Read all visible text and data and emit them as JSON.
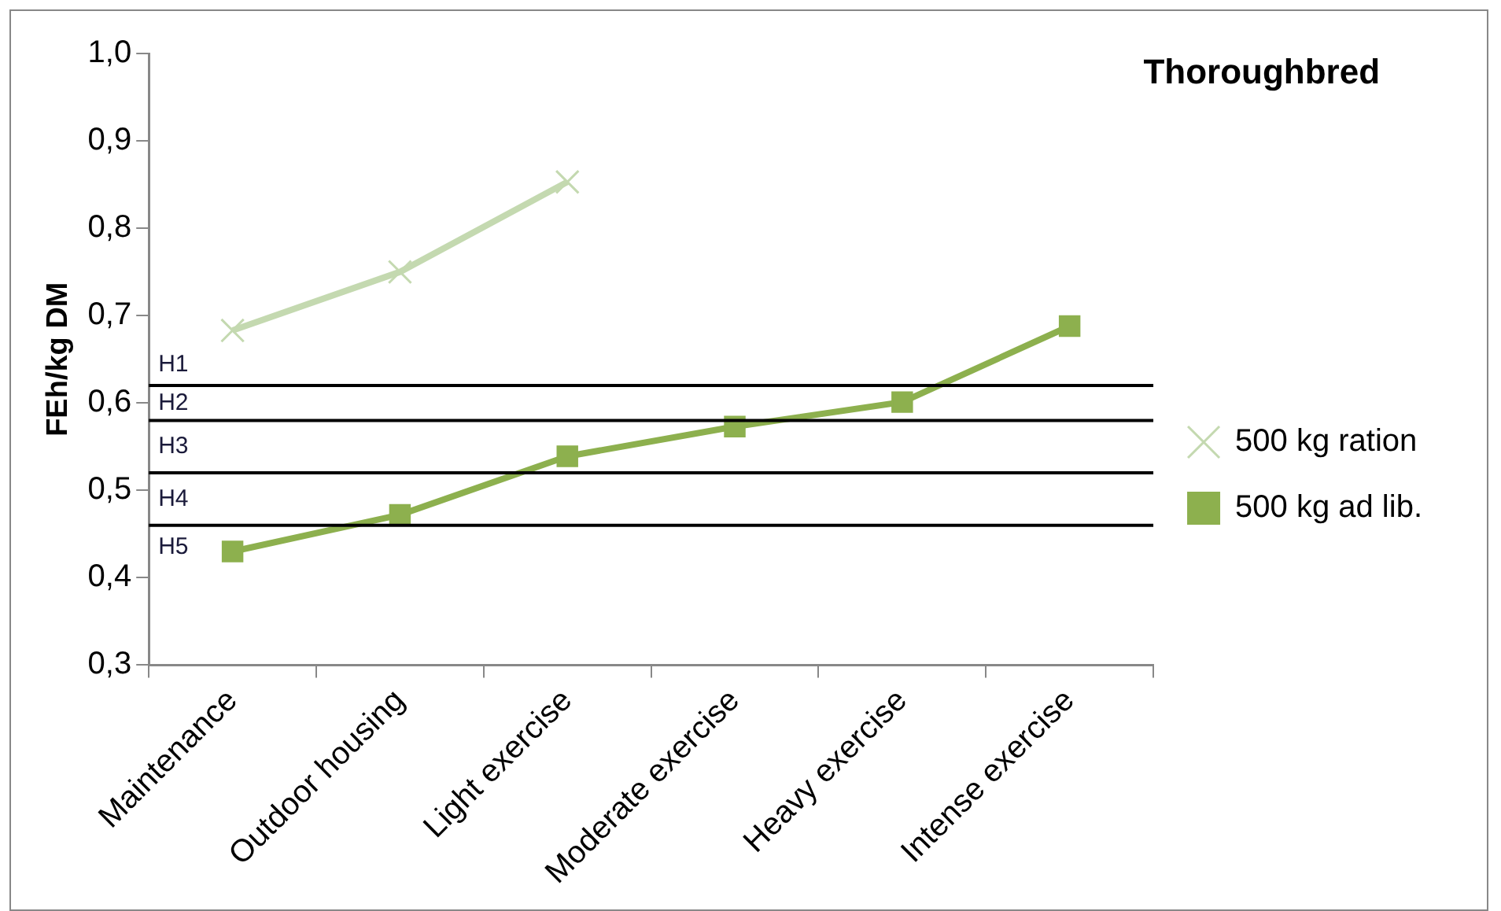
{
  "chart_data": {
    "type": "line",
    "title": "Thoroughbred",
    "ylabel": "FEh/kg DM",
    "categories": [
      "Maintenance",
      "Outdoor housing",
      "Light exercise",
      "Moderate exercise",
      "Heavy exercise",
      "Intense exercise"
    ],
    "series": [
      {
        "name": "500 kg ration",
        "color": "#c4d9b0",
        "marker": "cross",
        "values": [
          0.683,
          0.75,
          0.853,
          null,
          null,
          null
        ]
      },
      {
        "name": "500 kg ad lib.",
        "color": "#8db04e",
        "marker": "square",
        "values": [
          0.43,
          0.472,
          0.539,
          0.573,
          0.601,
          0.688
        ]
      }
    ],
    "ylim": [
      0.3,
      1.0
    ],
    "yticks": [
      {
        "value": 0.3,
        "label": "0,3"
      },
      {
        "value": 0.4,
        "label": "0,4"
      },
      {
        "value": 0.5,
        "label": "0,5"
      },
      {
        "value": 0.6,
        "label": "0,6"
      },
      {
        "value": 0.7,
        "label": "0,7"
      },
      {
        "value": 0.8,
        "label": "0,8"
      },
      {
        "value": 0.9,
        "label": "0,9"
      },
      {
        "value": 1.0,
        "label": "1,0"
      }
    ],
    "ref_lines": [
      {
        "axis": "y",
        "value": 0.62,
        "color": "#000000"
      },
      {
        "axis": "y",
        "value": 0.58,
        "color": "#000000"
      },
      {
        "axis": "y",
        "value": 0.52,
        "color": "#000000"
      },
      {
        "axis": "y",
        "value": 0.46,
        "color": "#000000"
      }
    ],
    "annotations": [
      "H1",
      "H2",
      "H3",
      "H4",
      "H5"
    ],
    "grid": false,
    "legend": "right"
  }
}
